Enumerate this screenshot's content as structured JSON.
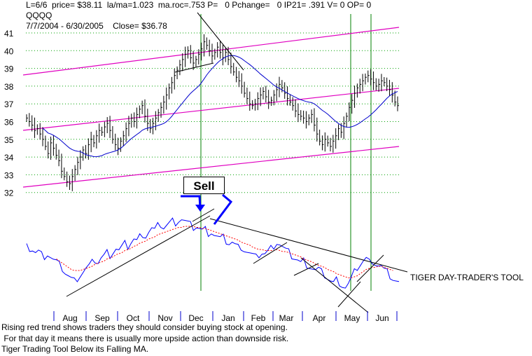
{
  "header": {
    "line1": "L=6/6  price= $38.11  la/ma=1.023  ma.roc=.753 P=   0 Pchange=   0 IP21= .391 V= 0 OP= 0",
    "line2": "QQQQ",
    "line3": "7/7/2004 - 6/30/2005    Close= $36.78"
  },
  "sell_label": "Sell",
  "tool_label": "TIGER DAY-TRADER'S TOOL",
  "notes": [
    "Rising red trend shows traders they should consider buying stock at opening.",
    " For that day it means there is usually more upside action than downside risk.",
    "Tiger Trading Tool Below its Falling MA."
  ],
  "colors": {
    "price_bars": "#000000",
    "moving_average": "#0000cc",
    "channel_lines": "#e000c0",
    "vertical_markers": "#008000",
    "gridlines": "#00a000",
    "tool_line": "#0000ff",
    "tool_ma": "#ff0000",
    "sell_arrow": "#0000ff"
  },
  "chart_data": [
    {
      "type": "line",
      "title": "QQQQ",
      "ylim": [
        31.5,
        41.5
      ],
      "yticks": [
        32,
        33,
        34,
        35,
        36,
        37,
        38,
        39,
        40,
        41
      ],
      "month_labels": [
        "Aug",
        "Sep",
        "Oct",
        "Nov",
        "Dec",
        "Jan",
        "Feb",
        "Mar",
        "Apr",
        "May",
        "Jun"
      ],
      "series": [
        {
          "values": [
            36.2,
            36.0,
            35.8,
            35.5,
            35.6,
            35.3,
            35.0,
            34.6,
            34.2,
            34.8,
            34.5,
            34.1,
            33.8,
            33.2,
            32.9,
            32.6,
            32.5,
            32.9,
            33.3,
            33.7,
            34.0,
            34.4,
            34.2,
            34.7,
            35.0,
            34.8,
            35.2,
            35.5,
            35.4,
            35.7,
            35.9,
            35.5,
            35.0,
            34.7,
            34.5,
            34.9,
            35.2,
            35.6,
            35.9,
            36.2,
            36.0,
            36.4,
            36.7,
            36.9,
            36.3,
            35.9,
            35.6,
            35.9,
            36.2,
            36.5,
            36.8,
            37.1,
            37.5,
            37.9,
            38.2,
            38.6,
            38.9,
            39.2,
            39.5,
            39.8,
            40.0,
            39.6,
            39.3,
            39.5,
            39.8,
            40.1,
            40.5,
            40.3,
            40.0,
            39.7,
            39.9,
            40.2,
            39.9,
            39.6,
            39.9,
            39.5,
            39.1,
            38.8,
            38.5,
            38.3,
            38.0,
            37.6,
            37.3,
            37.0,
            36.9,
            37.0,
            37.3,
            37.5,
            37.7,
            37.4,
            37.1,
            37.2,
            37.5,
            37.8,
            38.1,
            37.9,
            37.6,
            37.3,
            37.1,
            36.9,
            36.6,
            36.4,
            36.3,
            36.2,
            36.0,
            36.2,
            36.4,
            35.8,
            35.3,
            34.9,
            34.7,
            35.0,
            34.8,
            34.6,
            34.9,
            35.2,
            35.6,
            35.4,
            35.9,
            36.3,
            36.8,
            37.2,
            37.6,
            37.9,
            38.1,
            38.3,
            38.5,
            38.6,
            38.4,
            38.2,
            38.0,
            38.1,
            38.3,
            38.2,
            38.0,
            37.8,
            37.5,
            37.1,
            36.9
          ]
        }
      ]
    },
    {
      "type": "line",
      "title": "",
      "series": [
        {
          "values": [
            10,
            9,
            8,
            5,
            6,
            3,
            2,
            4,
            1,
            -2,
            -4,
            -7,
            -10,
            -14,
            -17,
            -20,
            -22,
            -19,
            -16,
            -13,
            -10,
            -8,
            -5,
            -2,
            -4,
            0,
            2,
            5,
            3,
            6,
            9,
            7,
            10,
            13,
            11,
            15,
            18,
            16,
            20,
            23,
            21,
            25,
            28,
            26,
            30,
            32,
            29,
            31,
            33,
            35,
            34,
            36,
            37,
            35,
            33,
            31,
            29,
            30,
            28,
            26,
            27,
            24,
            25,
            22,
            20,
            18,
            19,
            16,
            14,
            15,
            12,
            10,
            11,
            8,
            6,
            4,
            2,
            0,
            3,
            5,
            4,
            6,
            9,
            12,
            15,
            13,
            10,
            7,
            5,
            2,
            0,
            -2,
            -5,
            -3,
            -6,
            -8,
            -10,
            -12,
            -11,
            -14,
            -16,
            -19,
            -22,
            -24,
            -21,
            -23,
            -26,
            -28,
            -25,
            -20,
            -14,
            -9,
            -6,
            -3,
            -1,
            -4,
            -2,
            -5,
            -7,
            -8,
            -12,
            -14,
            -17,
            -20,
            -22,
            -24
          ]
        },
        {
          "values": [
            null,
            null,
            null,
            null,
            null,
            null,
            null,
            null,
            null,
            null,
            -1,
            -3,
            -5,
            -7,
            -9,
            -11,
            -12,
            -12,
            -12,
            -11,
            -10,
            -9,
            -8,
            -6,
            -5,
            -4,
            -3,
            -1,
            0,
            1,
            3,
            4,
            5,
            7,
            8,
            9,
            11,
            12,
            14,
            15,
            16,
            18,
            19,
            20,
            22,
            23,
            24,
            25,
            26,
            27,
            28,
            29,
            29,
            30,
            30,
            30,
            30,
            29,
            29,
            28,
            28,
            27,
            26,
            25,
            24,
            23,
            22,
            21,
            20,
            19,
            18,
            17,
            15,
            14,
            13,
            12,
            10,
            9,
            8,
            8,
            7,
            7,
            7,
            7,
            8,
            7,
            6,
            6,
            5,
            4,
            3,
            2,
            1,
            -1,
            -2,
            -3,
            -4,
            -6,
            -7,
            -8,
            -9,
            -11,
            -12,
            -13,
            -15,
            -16,
            -17,
            -18,
            -19,
            -19,
            -18,
            -17,
            -15,
            -13,
            -11,
            -10,
            -9,
            -9,
            -8,
            -8,
            -9,
            -10,
            -11,
            -12
          ]
        }
      ]
    }
  ]
}
